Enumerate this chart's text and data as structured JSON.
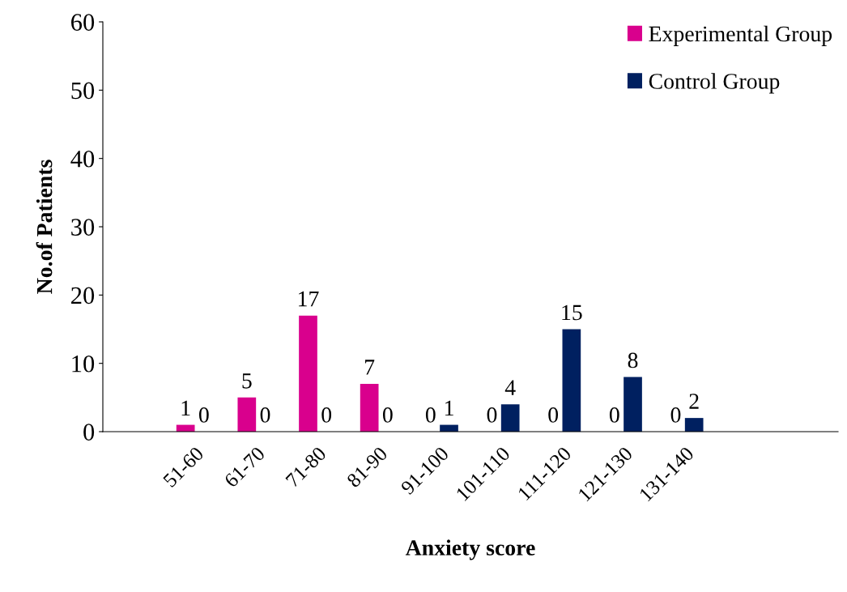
{
  "chart_data": {
    "type": "bar",
    "xlabel": "Anxiety score",
    "ylabel": "No.of Patients",
    "categories": [
      null,
      "51-60",
      "61-70",
      "71-80",
      "81-90",
      "91-100",
      "101-110",
      "111-120",
      "121-130",
      "131-140",
      null,
      null
    ],
    "series": [
      {
        "name": "Experimental Group",
        "color": "#d9008d",
        "values": [
          null,
          1,
          5,
          17,
          7,
          0,
          0,
          0,
          0,
          0,
          null,
          null
        ]
      },
      {
        "name": "Control Group",
        "color": "#002060",
        "values": [
          null,
          0,
          0,
          0,
          0,
          1,
          4,
          15,
          8,
          2,
          null,
          null
        ]
      }
    ],
    "ylim": [
      0,
      60
    ],
    "yticks": [
      0,
      10,
      20,
      30,
      40,
      50,
      60
    ],
    "data_labels": true,
    "grid": false,
    "legend": "top right"
  }
}
